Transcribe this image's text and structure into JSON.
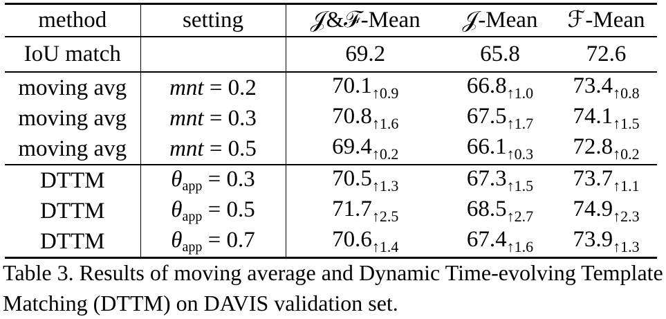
{
  "table": {
    "headers": {
      "method": "method",
      "setting": "setting",
      "jf_mean": "𝒥&ℱ-Mean",
      "j_mean": "𝒥-Mean",
      "f_mean": "ℱ-Mean"
    },
    "baseline": {
      "method": "IoU match",
      "setting": "",
      "jf": "69.2",
      "j": "65.8",
      "f": "72.6"
    },
    "moving_avg_rows": [
      {
        "method": "moving avg",
        "param": "mnt",
        "param_sub": "",
        "value": "= 0.2",
        "jf": "70.1",
        "jf_delta": "↑0.9",
        "j": "66.8",
        "j_delta": "↑1.0",
        "f": "73.4",
        "f_delta": "↑0.8",
        "bold": false
      },
      {
        "method": "moving avg",
        "param": "mnt",
        "param_sub": "",
        "value": "= 0.3",
        "jf": "70.8",
        "jf_delta": "↑1.6",
        "j": "67.5",
        "j_delta": "↑1.7",
        "f": "74.1",
        "f_delta": "↑1.5",
        "bold": true
      },
      {
        "method": "moving avg",
        "param": "mnt",
        "param_sub": "",
        "value": "= 0.5",
        "jf": "69.4",
        "jf_delta": "↑0.2",
        "j": "66.1",
        "j_delta": "↑0.3",
        "f": "72.8",
        "f_delta": "↑0.2",
        "bold": false
      }
    ],
    "dttm_rows": [
      {
        "method": "DTTM",
        "param": "θ",
        "param_sub": "app",
        "value": "= 0.3",
        "jf": "70.5",
        "jf_delta": "↑1.3",
        "j": "67.3",
        "j_delta": "↑1.5",
        "f": "73.7",
        "f_delta": "↑1.1",
        "bold": false
      },
      {
        "method": "DTTM",
        "param": "θ",
        "param_sub": "app",
        "value": "= 0.5",
        "jf": "71.7",
        "jf_delta": "↑2.5",
        "j": "68.5",
        "j_delta": "↑2.7",
        "f": "74.9",
        "f_delta": "↑2.3",
        "bold": true
      },
      {
        "method": "DTTM",
        "param": "θ",
        "param_sub": "app",
        "value": "= 0.7",
        "jf": "70.6",
        "jf_delta": "↑1.4",
        "j": "67.4",
        "j_delta": "↑1.6",
        "f": "73.9",
        "f_delta": "↑1.3",
        "bold": false
      }
    ]
  },
  "caption": "Table 3. Results of moving average and Dynamic Time-evolving Template Matching (DTTM) on DAVIS validation set."
}
